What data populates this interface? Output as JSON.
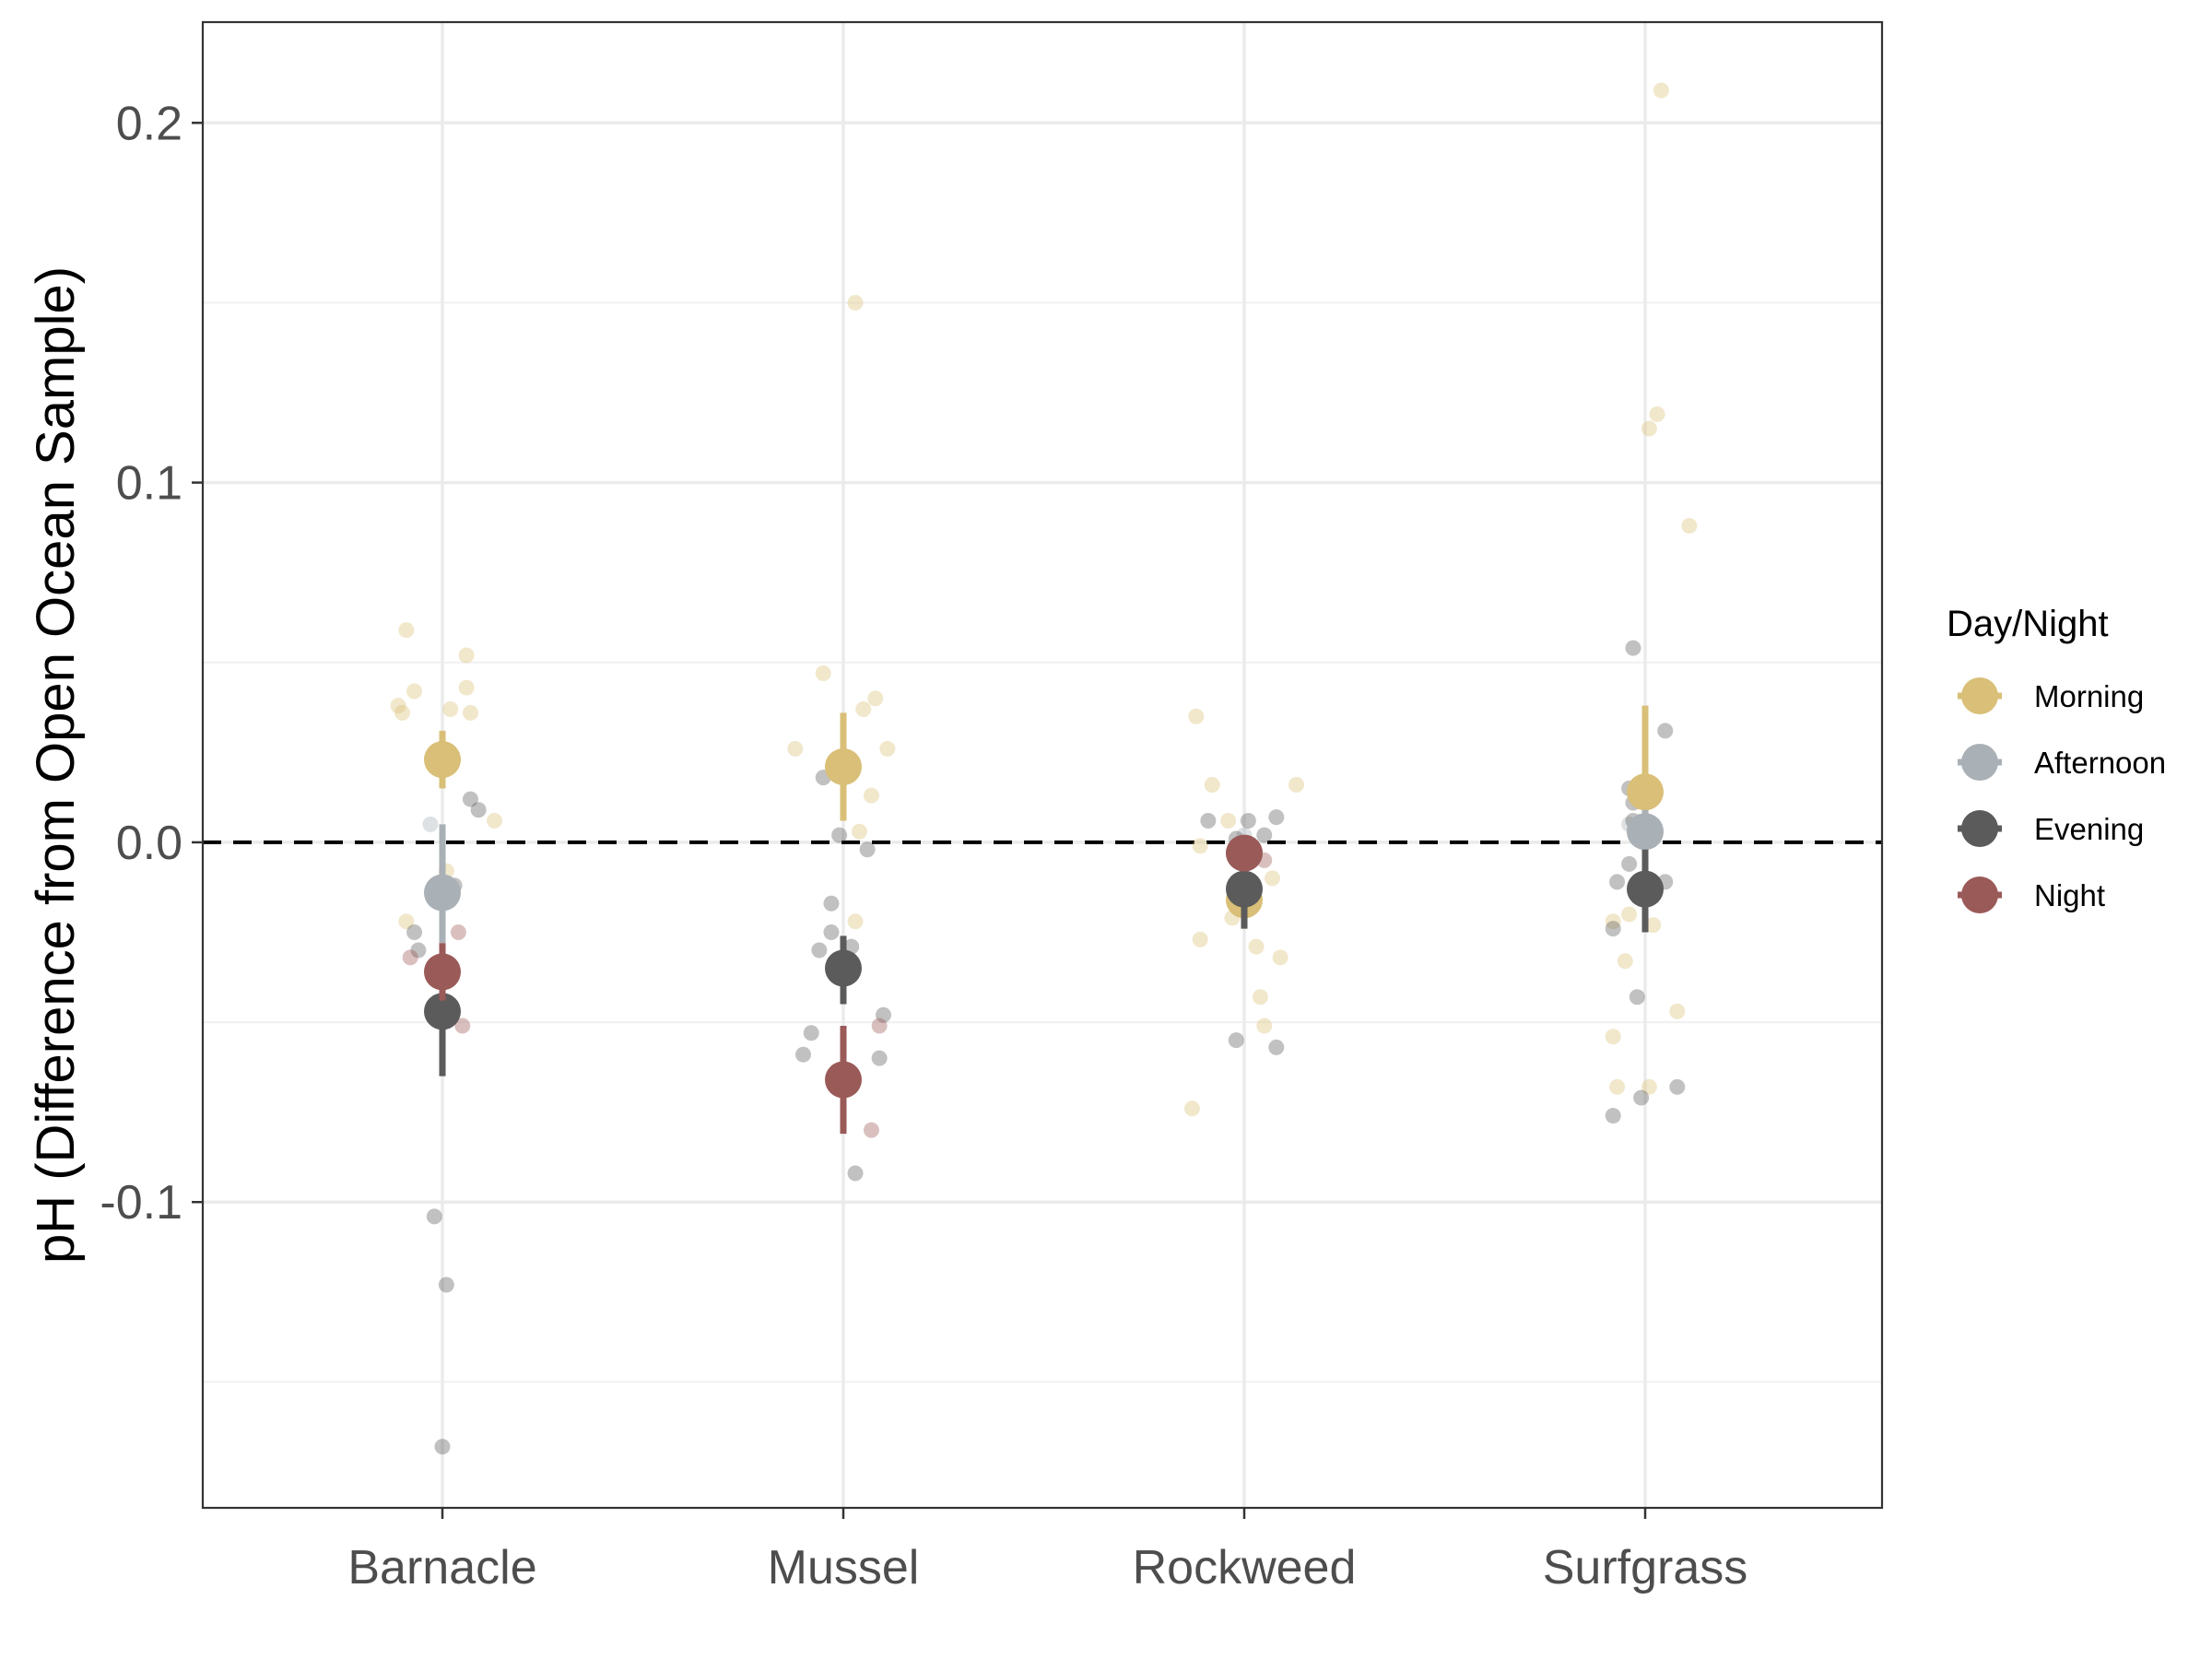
{
  "chart_data": {
    "type": "scatter",
    "xlabel": "",
    "ylabel": "pH (Difference from Open Ocean Sample)",
    "categories": [
      "Barnacle",
      "Mussel",
      "Rockweed",
      "Surfgrass"
    ],
    "ylim": [
      -0.185,
      0.228
    ],
    "y_ticks": [
      {
        "value": 0.2,
        "label": "0.2"
      },
      {
        "value": 0.1,
        "label": "0.1"
      },
      {
        "value": 0.0,
        "label": "0.0"
      },
      {
        "value": -0.1,
        "label": "-0.1"
      }
    ],
    "y_minor_ticks": [
      0.15,
      0.05,
      -0.05,
      -0.15
    ],
    "reference_line": {
      "y": 0.0,
      "style": "dashed",
      "color": "#000000"
    },
    "grid": true,
    "legend": {
      "title": "Day/Night",
      "position": "right",
      "entries": [
        {
          "label": "Morning",
          "color": "#D9BF77"
        },
        {
          "label": "Afternoon",
          "color": "#A9B0B6"
        },
        {
          "label": "Evening",
          "color": "#5B5B5B"
        },
        {
          "label": "Night",
          "color": "#9A5A58"
        }
      ]
    },
    "series": [
      {
        "name": "Morning",
        "color": "#D9BF77",
        "summary": [
          {
            "category": "Barnacle",
            "mean": 0.023,
            "lo": 0.015,
            "hi": 0.031
          },
          {
            "category": "Mussel",
            "mean": 0.021,
            "lo": 0.006,
            "hi": 0.036
          },
          {
            "category": "Rockweed",
            "mean": -0.016,
            "lo": -0.024,
            "hi": -0.008
          },
          {
            "category": "Surfgrass",
            "mean": 0.014,
            "lo": -0.01,
            "hi": 0.038
          }
        ],
        "points": [
          {
            "category": "Barnacle",
            "jitter": -0.09,
            "y": 0.059
          },
          {
            "category": "Barnacle",
            "jitter": -0.11,
            "y": 0.038
          },
          {
            "category": "Barnacle",
            "jitter": -0.1,
            "y": 0.036
          },
          {
            "category": "Barnacle",
            "jitter": -0.07,
            "y": 0.042
          },
          {
            "category": "Barnacle",
            "jitter": 0.02,
            "y": 0.037
          },
          {
            "category": "Barnacle",
            "jitter": 0.06,
            "y": 0.052
          },
          {
            "category": "Barnacle",
            "jitter": 0.06,
            "y": 0.043
          },
          {
            "category": "Barnacle",
            "jitter": 0.07,
            "y": 0.036
          },
          {
            "category": "Barnacle",
            "jitter": 0.13,
            "y": 0.006
          },
          {
            "category": "Barnacle",
            "jitter": 0.01,
            "y": -0.008
          },
          {
            "category": "Barnacle",
            "jitter": -0.09,
            "y": -0.022
          },
          {
            "category": "Mussel",
            "jitter": -0.05,
            "y": 0.047
          },
          {
            "category": "Mussel",
            "jitter": -0.12,
            "y": 0.026
          },
          {
            "category": "Mussel",
            "jitter": 0.08,
            "y": 0.04
          },
          {
            "category": "Mussel",
            "jitter": 0.05,
            "y": 0.037
          },
          {
            "category": "Mussel",
            "jitter": 0.11,
            "y": 0.026
          },
          {
            "category": "Mussel",
            "jitter": 0.07,
            "y": 0.013
          },
          {
            "category": "Mussel",
            "jitter": 0.04,
            "y": 0.003
          },
          {
            "category": "Mussel",
            "jitter": 0.03,
            "y": 0.15
          },
          {
            "category": "Mussel",
            "jitter": 0.03,
            "y": -0.022
          },
          {
            "category": "Rockweed",
            "jitter": -0.12,
            "y": 0.035
          },
          {
            "category": "Rockweed",
            "jitter": -0.08,
            "y": 0.016
          },
          {
            "category": "Rockweed",
            "jitter": 0.13,
            "y": 0.016
          },
          {
            "category": "Rockweed",
            "jitter": -0.04,
            "y": 0.006
          },
          {
            "category": "Rockweed",
            "jitter": -0.11,
            "y": -0.001
          },
          {
            "category": "Rockweed",
            "jitter": 0.07,
            "y": -0.01
          },
          {
            "category": "Rockweed",
            "jitter": -0.03,
            "y": -0.021
          },
          {
            "category": "Rockweed",
            "jitter": -0.11,
            "y": -0.027
          },
          {
            "category": "Rockweed",
            "jitter": 0.03,
            "y": -0.029
          },
          {
            "category": "Rockweed",
            "jitter": 0.09,
            "y": -0.032
          },
          {
            "category": "Rockweed",
            "jitter": 0.04,
            "y": -0.043
          },
          {
            "category": "Rockweed",
            "jitter": 0.05,
            "y": -0.051
          },
          {
            "category": "Rockweed",
            "jitter": -0.13,
            "y": -0.074
          },
          {
            "category": "Surfgrass",
            "jitter": 0.04,
            "y": 0.209
          },
          {
            "category": "Surfgrass",
            "jitter": 0.01,
            "y": 0.115
          },
          {
            "category": "Surfgrass",
            "jitter": 0.03,
            "y": 0.119
          },
          {
            "category": "Surfgrass",
            "jitter": 0.11,
            "y": 0.088
          },
          {
            "category": "Surfgrass",
            "jitter": -0.04,
            "y": -0.02
          },
          {
            "category": "Surfgrass",
            "jitter": -0.08,
            "y": -0.022
          },
          {
            "category": "Surfgrass",
            "jitter": 0.02,
            "y": -0.023
          },
          {
            "category": "Surfgrass",
            "jitter": -0.05,
            "y": -0.033
          },
          {
            "category": "Surfgrass",
            "jitter": 0.08,
            "y": -0.047
          },
          {
            "category": "Surfgrass",
            "jitter": -0.08,
            "y": -0.054
          },
          {
            "category": "Surfgrass",
            "jitter": -0.07,
            "y": -0.068
          },
          {
            "category": "Surfgrass",
            "jitter": 0.01,
            "y": -0.068
          }
        ]
      },
      {
        "name": "Afternoon",
        "color": "#A9B0B6",
        "summary": [
          {
            "category": "Barnacle",
            "mean": -0.014,
            "lo": -0.028,
            "hi": 0.005
          },
          {
            "category": "Rockweed",
            "mean": -0.003,
            "lo": -0.008,
            "hi": 0.002
          },
          {
            "category": "Surfgrass",
            "mean": 0.003,
            "lo": -0.003,
            "hi": 0.009
          }
        ],
        "points": [
          {
            "category": "Barnacle",
            "jitter": -0.03,
            "y": 0.005
          },
          {
            "category": "Barnacle",
            "jitter": 0.0,
            "y": -0.014
          },
          {
            "category": "Surfgrass",
            "jitter": -0.04,
            "y": 0.005
          },
          {
            "category": "Surfgrass",
            "jitter": -0.02,
            "y": 0.001
          },
          {
            "category": "Rockweed",
            "jitter": 0.0,
            "y": 0.002
          }
        ]
      },
      {
        "name": "Evening",
        "color": "#5B5B5B",
        "summary": [
          {
            "category": "Barnacle",
            "mean": -0.047,
            "lo": -0.065,
            "hi": -0.03
          },
          {
            "category": "Mussel",
            "mean": -0.035,
            "lo": -0.045,
            "hi": -0.026
          },
          {
            "category": "Rockweed",
            "mean": -0.013,
            "lo": -0.024,
            "hi": -0.002
          },
          {
            "category": "Surfgrass",
            "mean": -0.013,
            "lo": -0.025,
            "hi": -0.002
          }
        ],
        "points": [
          {
            "category": "Barnacle",
            "jitter": 0.07,
            "y": 0.012
          },
          {
            "category": "Barnacle",
            "jitter": 0.09,
            "y": 0.009
          },
          {
            "category": "Barnacle",
            "jitter": 0.03,
            "y": -0.012
          },
          {
            "category": "Barnacle",
            "jitter": -0.07,
            "y": -0.025
          },
          {
            "category": "Barnacle",
            "jitter": -0.06,
            "y": -0.03
          },
          {
            "category": "Barnacle",
            "jitter": -0.02,
            "y": -0.104
          },
          {
            "category": "Barnacle",
            "jitter": 0.01,
            "y": -0.123
          },
          {
            "category": "Barnacle",
            "jitter": 0.0,
            "y": -0.168
          },
          {
            "category": "Mussel",
            "jitter": -0.05,
            "y": 0.018
          },
          {
            "category": "Mussel",
            "jitter": -0.01,
            "y": 0.002
          },
          {
            "category": "Mussel",
            "jitter": 0.06,
            "y": -0.002
          },
          {
            "category": "Mussel",
            "jitter": -0.03,
            "y": -0.017
          },
          {
            "category": "Mussel",
            "jitter": -0.03,
            "y": -0.025
          },
          {
            "category": "Mussel",
            "jitter": 0.02,
            "y": -0.029
          },
          {
            "category": "Mussel",
            "jitter": -0.06,
            "y": -0.03
          },
          {
            "category": "Mussel",
            "jitter": 0.1,
            "y": -0.048
          },
          {
            "category": "Mussel",
            "jitter": -0.08,
            "y": -0.053
          },
          {
            "category": "Mussel",
            "jitter": -0.1,
            "y": -0.059
          },
          {
            "category": "Mussel",
            "jitter": 0.09,
            "y": -0.06
          },
          {
            "category": "Mussel",
            "jitter": 0.03,
            "y": -0.092
          },
          {
            "category": "Rockweed",
            "jitter": -0.09,
            "y": 0.006
          },
          {
            "category": "Rockweed",
            "jitter": 0.01,
            "y": 0.006
          },
          {
            "category": "Rockweed",
            "jitter": 0.08,
            "y": 0.007
          },
          {
            "category": "Rockweed",
            "jitter": 0.05,
            "y": 0.002
          },
          {
            "category": "Rockweed",
            "jitter": -0.02,
            "y": 0.001
          },
          {
            "category": "Rockweed",
            "jitter": -0.02,
            "y": -0.055
          },
          {
            "category": "Rockweed",
            "jitter": 0.08,
            "y": -0.057
          },
          {
            "category": "Surfgrass",
            "jitter": -0.03,
            "y": 0.054
          },
          {
            "category": "Surfgrass",
            "jitter": 0.05,
            "y": 0.031
          },
          {
            "category": "Surfgrass",
            "jitter": -0.04,
            "y": 0.015
          },
          {
            "category": "Surfgrass",
            "jitter": -0.03,
            "y": 0.011
          },
          {
            "category": "Surfgrass",
            "jitter": -0.03,
            "y": 0.006
          },
          {
            "category": "Surfgrass",
            "jitter": -0.04,
            "y": -0.006
          },
          {
            "category": "Surfgrass",
            "jitter": -0.07,
            "y": -0.011
          },
          {
            "category": "Surfgrass",
            "jitter": 0.05,
            "y": -0.011
          },
          {
            "category": "Surfgrass",
            "jitter": -0.08,
            "y": -0.024
          },
          {
            "category": "Surfgrass",
            "jitter": -0.02,
            "y": -0.043
          },
          {
            "category": "Surfgrass",
            "jitter": 0.08,
            "y": -0.068
          },
          {
            "category": "Surfgrass",
            "jitter": -0.01,
            "y": -0.071
          },
          {
            "category": "Surfgrass",
            "jitter": -0.08,
            "y": -0.076
          }
        ]
      },
      {
        "name": "Night",
        "color": "#9A5A58",
        "summary": [
          {
            "category": "Barnacle",
            "mean": -0.036,
            "lo": -0.044,
            "hi": -0.028
          },
          {
            "category": "Mussel",
            "mean": -0.066,
            "lo": -0.081,
            "hi": -0.051
          },
          {
            "category": "Rockweed",
            "mean": -0.003,
            "lo": -0.007,
            "hi": 0.001
          }
        ],
        "points": [
          {
            "category": "Barnacle",
            "jitter": -0.08,
            "y": -0.032
          },
          {
            "category": "Barnacle",
            "jitter": 0.04,
            "y": -0.025
          },
          {
            "category": "Barnacle",
            "jitter": 0.05,
            "y": -0.051
          },
          {
            "category": "Mussel",
            "jitter": 0.09,
            "y": -0.051
          },
          {
            "category": "Mussel",
            "jitter": 0.07,
            "y": -0.08
          },
          {
            "category": "Rockweed",
            "jitter": 0.05,
            "y": -0.005
          },
          {
            "category": "Rockweed",
            "jitter": -0.01,
            "y": -0.001
          }
        ]
      }
    ]
  }
}
